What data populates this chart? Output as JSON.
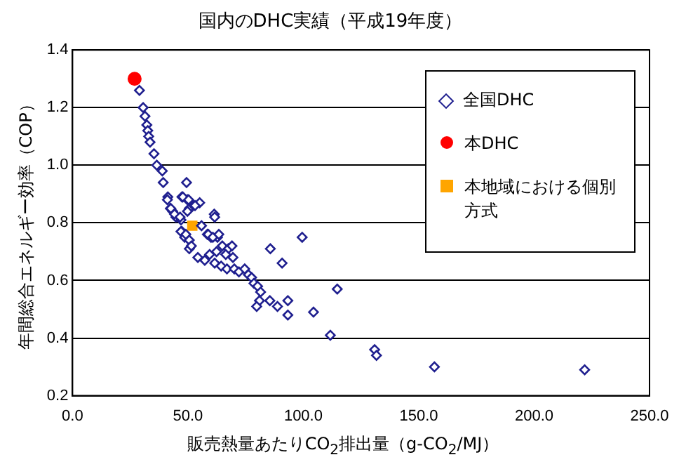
{
  "chart_data": {
    "type": "scatter",
    "title": "国内のDHC実績（平成19年度）",
    "xlabel": "販売熱量あたりCO$_{2}$排出量（g-CO$_{2}$/MJ）",
    "ylabel": "年間総合エネルギー効率（COP）",
    "xlim": [
      0,
      250
    ],
    "xticks": [
      {
        "value": 0,
        "label": "0.0"
      },
      {
        "value": 50,
        "label": "50.0"
      },
      {
        "value": 100,
        "label": "100.0"
      },
      {
        "value": 150,
        "label": "150.0"
      },
      {
        "value": 200,
        "label": "200.0"
      },
      {
        "value": 250,
        "label": "250.0"
      }
    ],
    "ylim": [
      0.2,
      1.4
    ],
    "yticks": [
      0.2,
      0.4,
      0.6,
      0.8,
      {
        "value": 1.0,
        "label": "1.0"
      },
      1.2,
      1.4
    ],
    "grid": "y",
    "legend": "top right",
    "series": [
      {
        "name": "全国DHC",
        "color": "#1f1f8f",
        "marker": "diamond",
        "x": [
          29.0,
          30.6,
          31.4,
          32.2,
          32.6,
          33.0,
          33.6,
          35.3,
          36.5,
          38.9,
          39.3,
          41.3,
          49.4,
          47.4,
          49.8,
          42.4,
          43.4,
          44.8,
          47.0,
          50.6,
          52.5,
          55.1,
          61.4,
          55.9,
          47.4,
          48.6,
          50.6,
          58.4,
          62.8,
          60.0,
          41.1,
          47.8,
          50.3,
          53.1,
          61.6,
          42.6,
          44.2,
          46.6,
          49.8,
          47.0,
          49.1,
          50.6,
          51.5,
          58.8,
          60.8,
          63.4,
          64.9,
          67.5,
          69.1,
          54.3,
          57.3,
          59.4,
          62.4,
          66.4,
          69.5,
          61.6,
          64.4,
          66.9,
          70.1,
          72.1,
          74.6,
          76.2,
          77.6,
          78.6,
          80.2,
          81.5,
          81.0,
          79.8,
          85.5,
          88.8,
          93.3,
          93.3,
          85.7,
          90.8,
          99.5,
          114.7,
          104.4,
          111.7,
          130.9,
          131.7,
          156.8,
          221.9
        ],
        "values": [
          1.26,
          1.2,
          1.17,
          1.14,
          1.12,
          1.1,
          1.08,
          1.04,
          1.0,
          0.98,
          0.94,
          0.89,
          0.94,
          0.89,
          0.88,
          0.85,
          0.84,
          0.82,
          0.81,
          0.85,
          0.86,
          0.87,
          0.83,
          0.79,
          0.77,
          0.75,
          0.71,
          0.76,
          0.75,
          0.75,
          0.88,
          0.89,
          0.88,
          0.86,
          0.82,
          0.85,
          0.83,
          0.82,
          0.84,
          0.77,
          0.76,
          0.74,
          0.72,
          0.76,
          0.75,
          0.76,
          0.72,
          0.71,
          0.72,
          0.68,
          0.67,
          0.69,
          0.7,
          0.69,
          0.68,
          0.66,
          0.65,
          0.64,
          0.64,
          0.63,
          0.64,
          0.62,
          0.61,
          0.59,
          0.58,
          0.56,
          0.53,
          0.51,
          0.53,
          0.51,
          0.53,
          0.48,
          0.71,
          0.66,
          0.75,
          0.57,
          0.49,
          0.41,
          0.36,
          0.34,
          0.3,
          0.29
        ]
      },
      {
        "name": "本DHC",
        "color": "#ff0000",
        "marker": "circle",
        "x": [
          26.9
        ],
        "values": [
          1.3
        ]
      },
      {
        "name": "本地域における個別方式",
        "color": "#ffa500",
        "marker": "square",
        "x": [
          51.9
        ],
        "values": [
          0.79
        ]
      }
    ]
  }
}
